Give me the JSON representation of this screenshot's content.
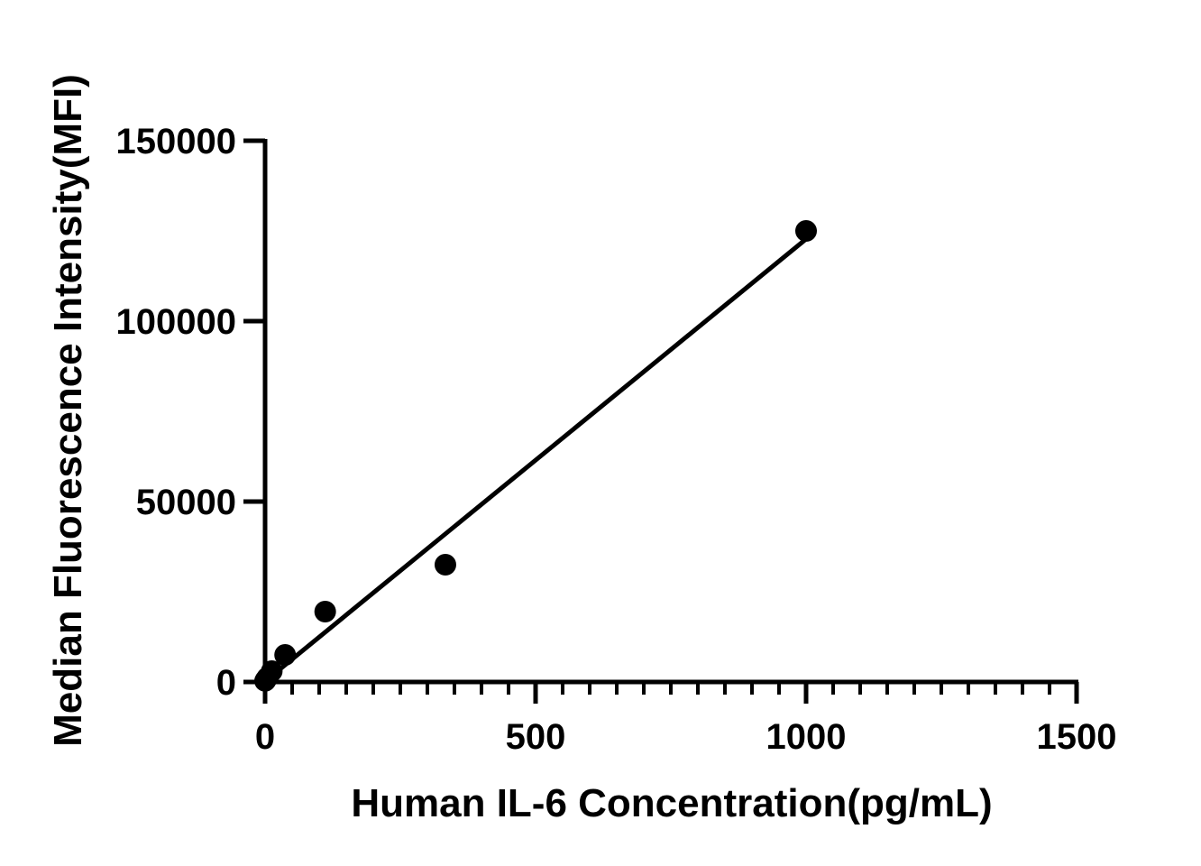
{
  "chart_data": {
    "type": "scatter",
    "x_label": "Human IL-6 Concentration(pg/mL)",
    "y_label": "Median Fluorescence Intensity(MFI)",
    "series": [
      {
        "color": "#000000",
        "x": [
          0,
          1.37,
          4.12,
          12.35,
          37.04,
          111.1,
          333.3,
          1000
        ],
        "values": [
          300,
          600,
          1200,
          3000,
          7500,
          19500,
          32500,
          125000
        ]
      }
    ],
    "fit": {
      "color": "#000000",
      "x": [
        5,
        1000
      ],
      "values": [
        800,
        122750
      ]
    },
    "xlim": [
      0,
      1500
    ],
    "xticks": [
      0,
      500,
      1000,
      1500
    ],
    "xminorticks": [
      50,
      100,
      150,
      200,
      250,
      300,
      350,
      400,
      450,
      550,
      600,
      650,
      700,
      750,
      800,
      850,
      900,
      950,
      1050,
      1100,
      1150,
      1200,
      1250,
      1300,
      1350,
      1400,
      1450
    ],
    "ylim": [
      0,
      150000
    ],
    "yticks": [
      0,
      50000,
      100000,
      150000
    ]
  }
}
